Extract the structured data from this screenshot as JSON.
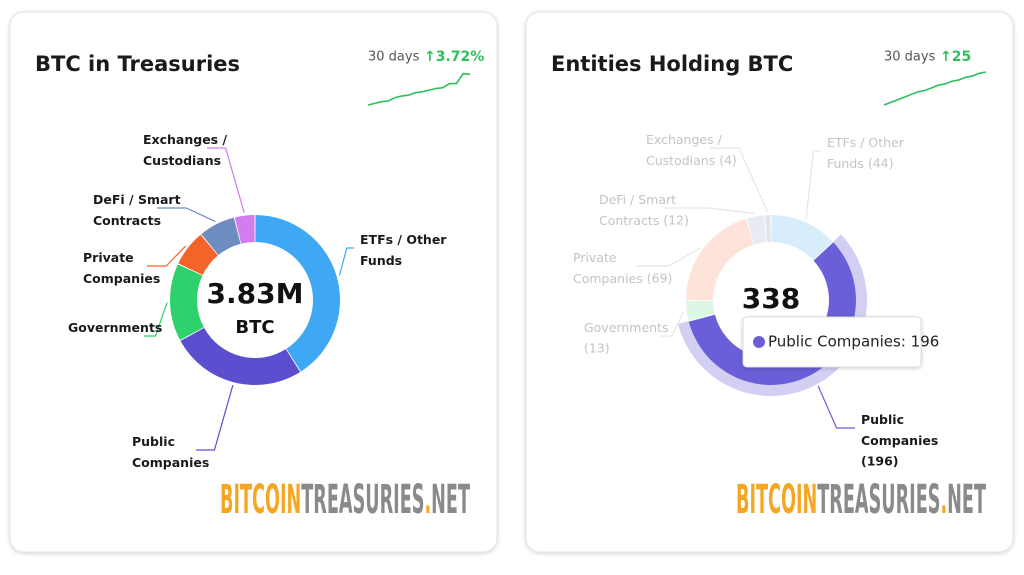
{
  "chart_data": [
    {
      "type": "pie",
      "title": "BTC in Treasuries",
      "period": "30 days",
      "change": "↑3.72%",
      "sparkline": [
        0,
        0.2,
        0.4,
        0.5,
        0.9,
        1.1,
        1.2,
        1.5,
        1.6,
        1.8,
        2.0,
        2.1,
        2.6,
        2.6,
        3.8,
        3.72
      ],
      "sparkline_ylim": [
        0,
        4
      ],
      "total_label": "3.83M",
      "unit_label": "BTC",
      "categories": [
        "ETFs / Other Funds",
        "Public Companies",
        "Governments",
        "Private Companies",
        "DeFi / Smart Contracts",
        "Exchanges / Custodians"
      ],
      "values": [
        1570000,
        1000000,
        570000,
        270000,
        270000,
        150000
      ],
      "colors": [
        "#3ea8f5",
        "#5b4fcf",
        "#2ed16b",
        "#f4642a",
        "#6d8cbf",
        "#d37cf0"
      ]
    },
    {
      "type": "pie",
      "title": "Entities Holding BTC",
      "period": "30 days",
      "change": "↑25",
      "sparkline": [
        0,
        2,
        4,
        6,
        8,
        10,
        11,
        13,
        15,
        16,
        18,
        19,
        21,
        22,
        24,
        25
      ],
      "sparkline_ylim": [
        0,
        25
      ],
      "total_label": "338",
      "categories": [
        "ETFs / Other Funds",
        "Public Companies",
        "Governments",
        "Private Companies",
        "DeFi / Smart Contracts",
        "Exchanges / Custodians"
      ],
      "values": [
        44,
        196,
        13,
        69,
        12,
        4
      ],
      "value_labels": [
        "(44)",
        "(196)",
        "(13)",
        "(69)",
        "(12)",
        "(4)"
      ],
      "colors": [
        "#d8edfc",
        "#6a5fd8",
        "#dcf7e6",
        "#fde3d9",
        "#e6ebf4",
        "#e2e4ea"
      ],
      "highlighted": "Public Companies",
      "tooltip": "Public Companies: 196"
    }
  ],
  "watermark": [
    "BITCOIN",
    "TREASURIES",
    ".",
    "NET"
  ]
}
